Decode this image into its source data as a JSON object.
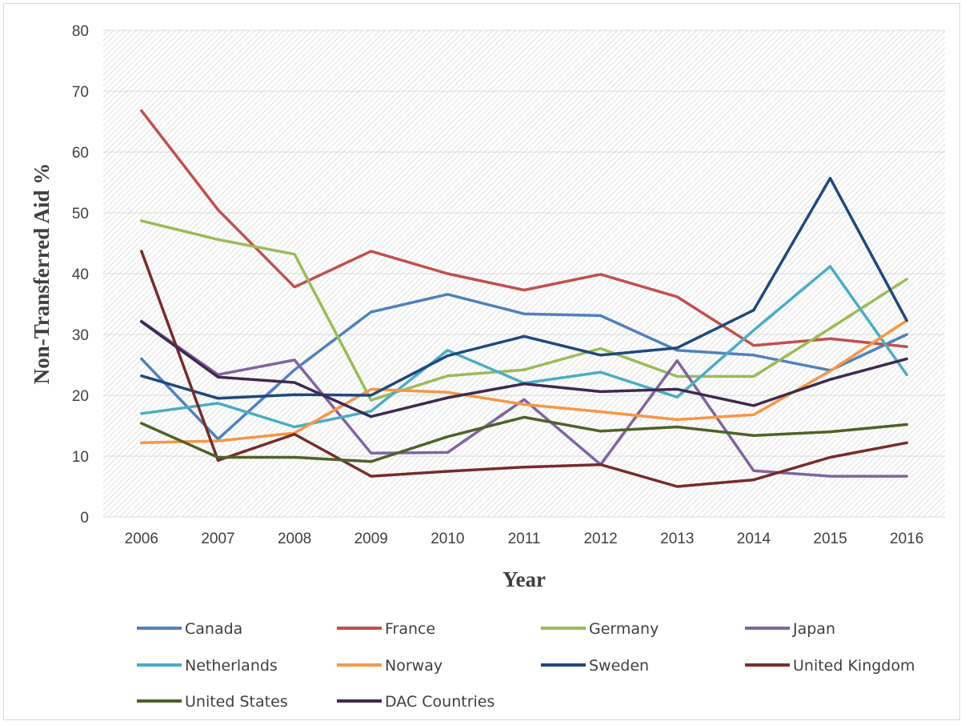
{
  "chart_data": {
    "type": "line",
    "title": "",
    "xlabel": "Year",
    "ylabel": "Non-Transferred Aid %",
    "ylim": [
      0,
      80
    ],
    "yticks": [
      "0",
      "10",
      "20",
      "30",
      "40",
      "50",
      "60",
      "70",
      "80"
    ],
    "x": [
      "2006",
      "2007",
      "2008",
      "2009",
      "2010",
      "2011",
      "2012",
      "2013",
      "2014",
      "2015",
      "2016"
    ],
    "grid": "horizontal",
    "legend_position": "bottom",
    "series": [
      {
        "name": "Canada",
        "color": "#4f81bd",
        "values": [
          26,
          12.8,
          24.2,
          33.7,
          36.6,
          33.4,
          33.1,
          27.4,
          26.6,
          24.1,
          30
        ]
      },
      {
        "name": "France",
        "color": "#c0504d",
        "values": [
          66.8,
          50.5,
          37.8,
          43.7,
          40,
          37.3,
          39.9,
          36.2,
          28.2,
          29.3,
          28
        ]
      },
      {
        "name": "Germany",
        "color": "#9bbb59",
        "values": [
          48.7,
          45.6,
          43.2,
          19.2,
          23.2,
          24.2,
          27.7,
          23.1,
          23.1,
          31,
          39.1
        ]
      },
      {
        "name": "Japan",
        "color": "#8064a2",
        "values": [
          32.2,
          23.4,
          25.8,
          10.5,
          10.6,
          19.3,
          8.6,
          25.7,
          7.6,
          6.7,
          6.7
        ]
      },
      {
        "name": "Netherlands",
        "color": "#4bacc6",
        "values": [
          17,
          18.7,
          14.8,
          17.4,
          27.4,
          22,
          23.8,
          19.7,
          30.7,
          41.2,
          23.4
        ]
      },
      {
        "name": "Norway",
        "color": "#f79646",
        "values": [
          12.2,
          12.5,
          13.8,
          21,
          20.5,
          18.5,
          17.3,
          16,
          16.8,
          24,
          32.3
        ]
      },
      {
        "name": "Sweden",
        "color": "#1f497d",
        "values": [
          23.2,
          19.5,
          20.1,
          20,
          26.5,
          29.7,
          26.6,
          27.8,
          34,
          55.7,
          32.3
        ]
      },
      {
        "name": "United Kingdom",
        "color": "#772c2a",
        "values": [
          43.7,
          9.3,
          13.6,
          6.7,
          7.5,
          8.2,
          8.6,
          5,
          6.1,
          9.8,
          12.2
        ]
      },
      {
        "name": "United States",
        "color": "#4f6228",
        "values": [
          15.4,
          9.8,
          9.8,
          9.1,
          13.2,
          16.4,
          14.1,
          14.8,
          13.4,
          14,
          15.2
        ]
      },
      {
        "name": "DAC Countries",
        "color": "#3f2a4f",
        "values": [
          32.1,
          23,
          22.1,
          16.5,
          19.6,
          21.9,
          20.6,
          21,
          18.3,
          22.6,
          26
        ]
      }
    ]
  }
}
